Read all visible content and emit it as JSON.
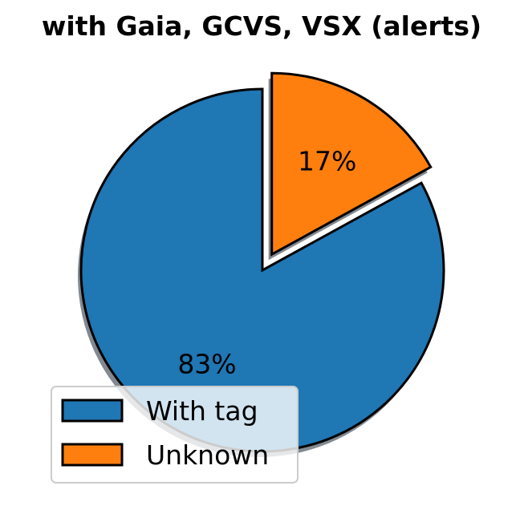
{
  "chart_data": {
    "type": "pie",
    "title": "with Gaia, GCVS, VSX (alerts)",
    "categories": [
      "With tag",
      "Unknown"
    ],
    "values": [
      83,
      17
    ],
    "labels": [
      "83%",
      "17%"
    ],
    "colors": [
      "#1f77b4",
      "#ff7f0e"
    ],
    "exploded": [
      false,
      true
    ],
    "shadow": true,
    "legend": {
      "position": "lower-left",
      "entries": [
        "With tag",
        "Unknown"
      ]
    }
  }
}
